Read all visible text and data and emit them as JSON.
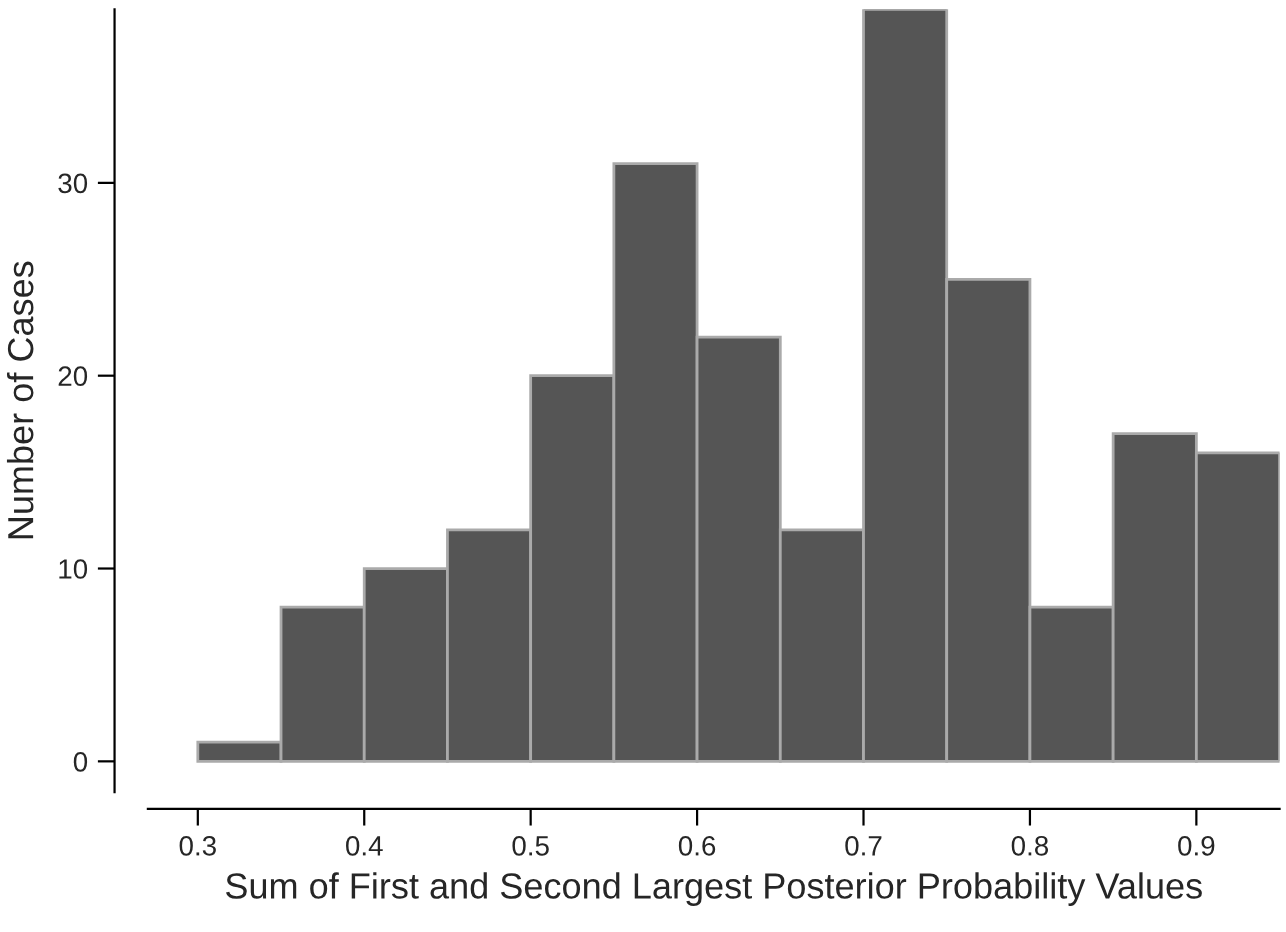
{
  "chart_data": {
    "type": "histogram",
    "xlabel": "Sum of First and Second Largest Posterior Probability Values",
    "ylabel": "Number of Cases",
    "bins": [
      0.3,
      0.35,
      0.4,
      0.45,
      0.5,
      0.55,
      0.6,
      0.65,
      0.7,
      0.75,
      0.8,
      0.85,
      0.9,
      0.95
    ],
    "values": [
      1,
      8,
      10,
      12,
      20,
      31,
      22,
      12,
      39,
      25,
      8,
      17,
      16
    ],
    "color": "#555555",
    "xlim": [
      0.27,
      0.95
    ],
    "ylim": [
      -1.6,
      39
    ],
    "xticks": [
      0.3,
      0.4,
      0.5,
      0.6,
      0.7,
      0.8,
      0.9
    ],
    "yticks": [
      0,
      10,
      20,
      30
    ],
    "grid": false
  }
}
